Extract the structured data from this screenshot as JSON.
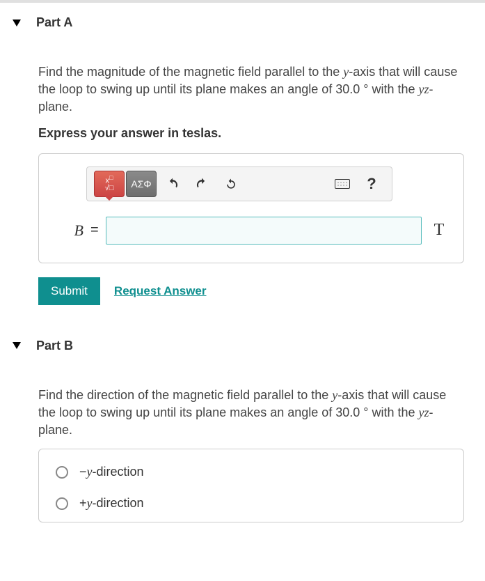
{
  "partA": {
    "title": "Part A",
    "question_html": "Find the magnitude of the magnetic field parallel to the <span class='ital'>y</span>-axis that will cause the loop to swing up until its plane makes an angle of 30.0 ° with the <span class='ital'>yz</span>-plane.",
    "instruction": "Express your answer in teslas.",
    "toolbar": {
      "greek_tab": "ΑΣΦ",
      "help": "?"
    },
    "variable": "B",
    "equals": "=",
    "value": "",
    "unit": "T",
    "submit": "Submit",
    "request": "Request Answer"
  },
  "partB": {
    "title": "Part B",
    "question_html": "Find the direction of the magnetic field parallel to the <span class='ital'>y</span>-axis that will cause the loop to swing up until its plane makes an angle of 30.0 ° with the <span class='ital'>yz</span>-plane.",
    "choices": [
      "−<span class='ital'>y</span>-direction",
      "+<span class='ital'>y</span>-direction"
    ]
  }
}
